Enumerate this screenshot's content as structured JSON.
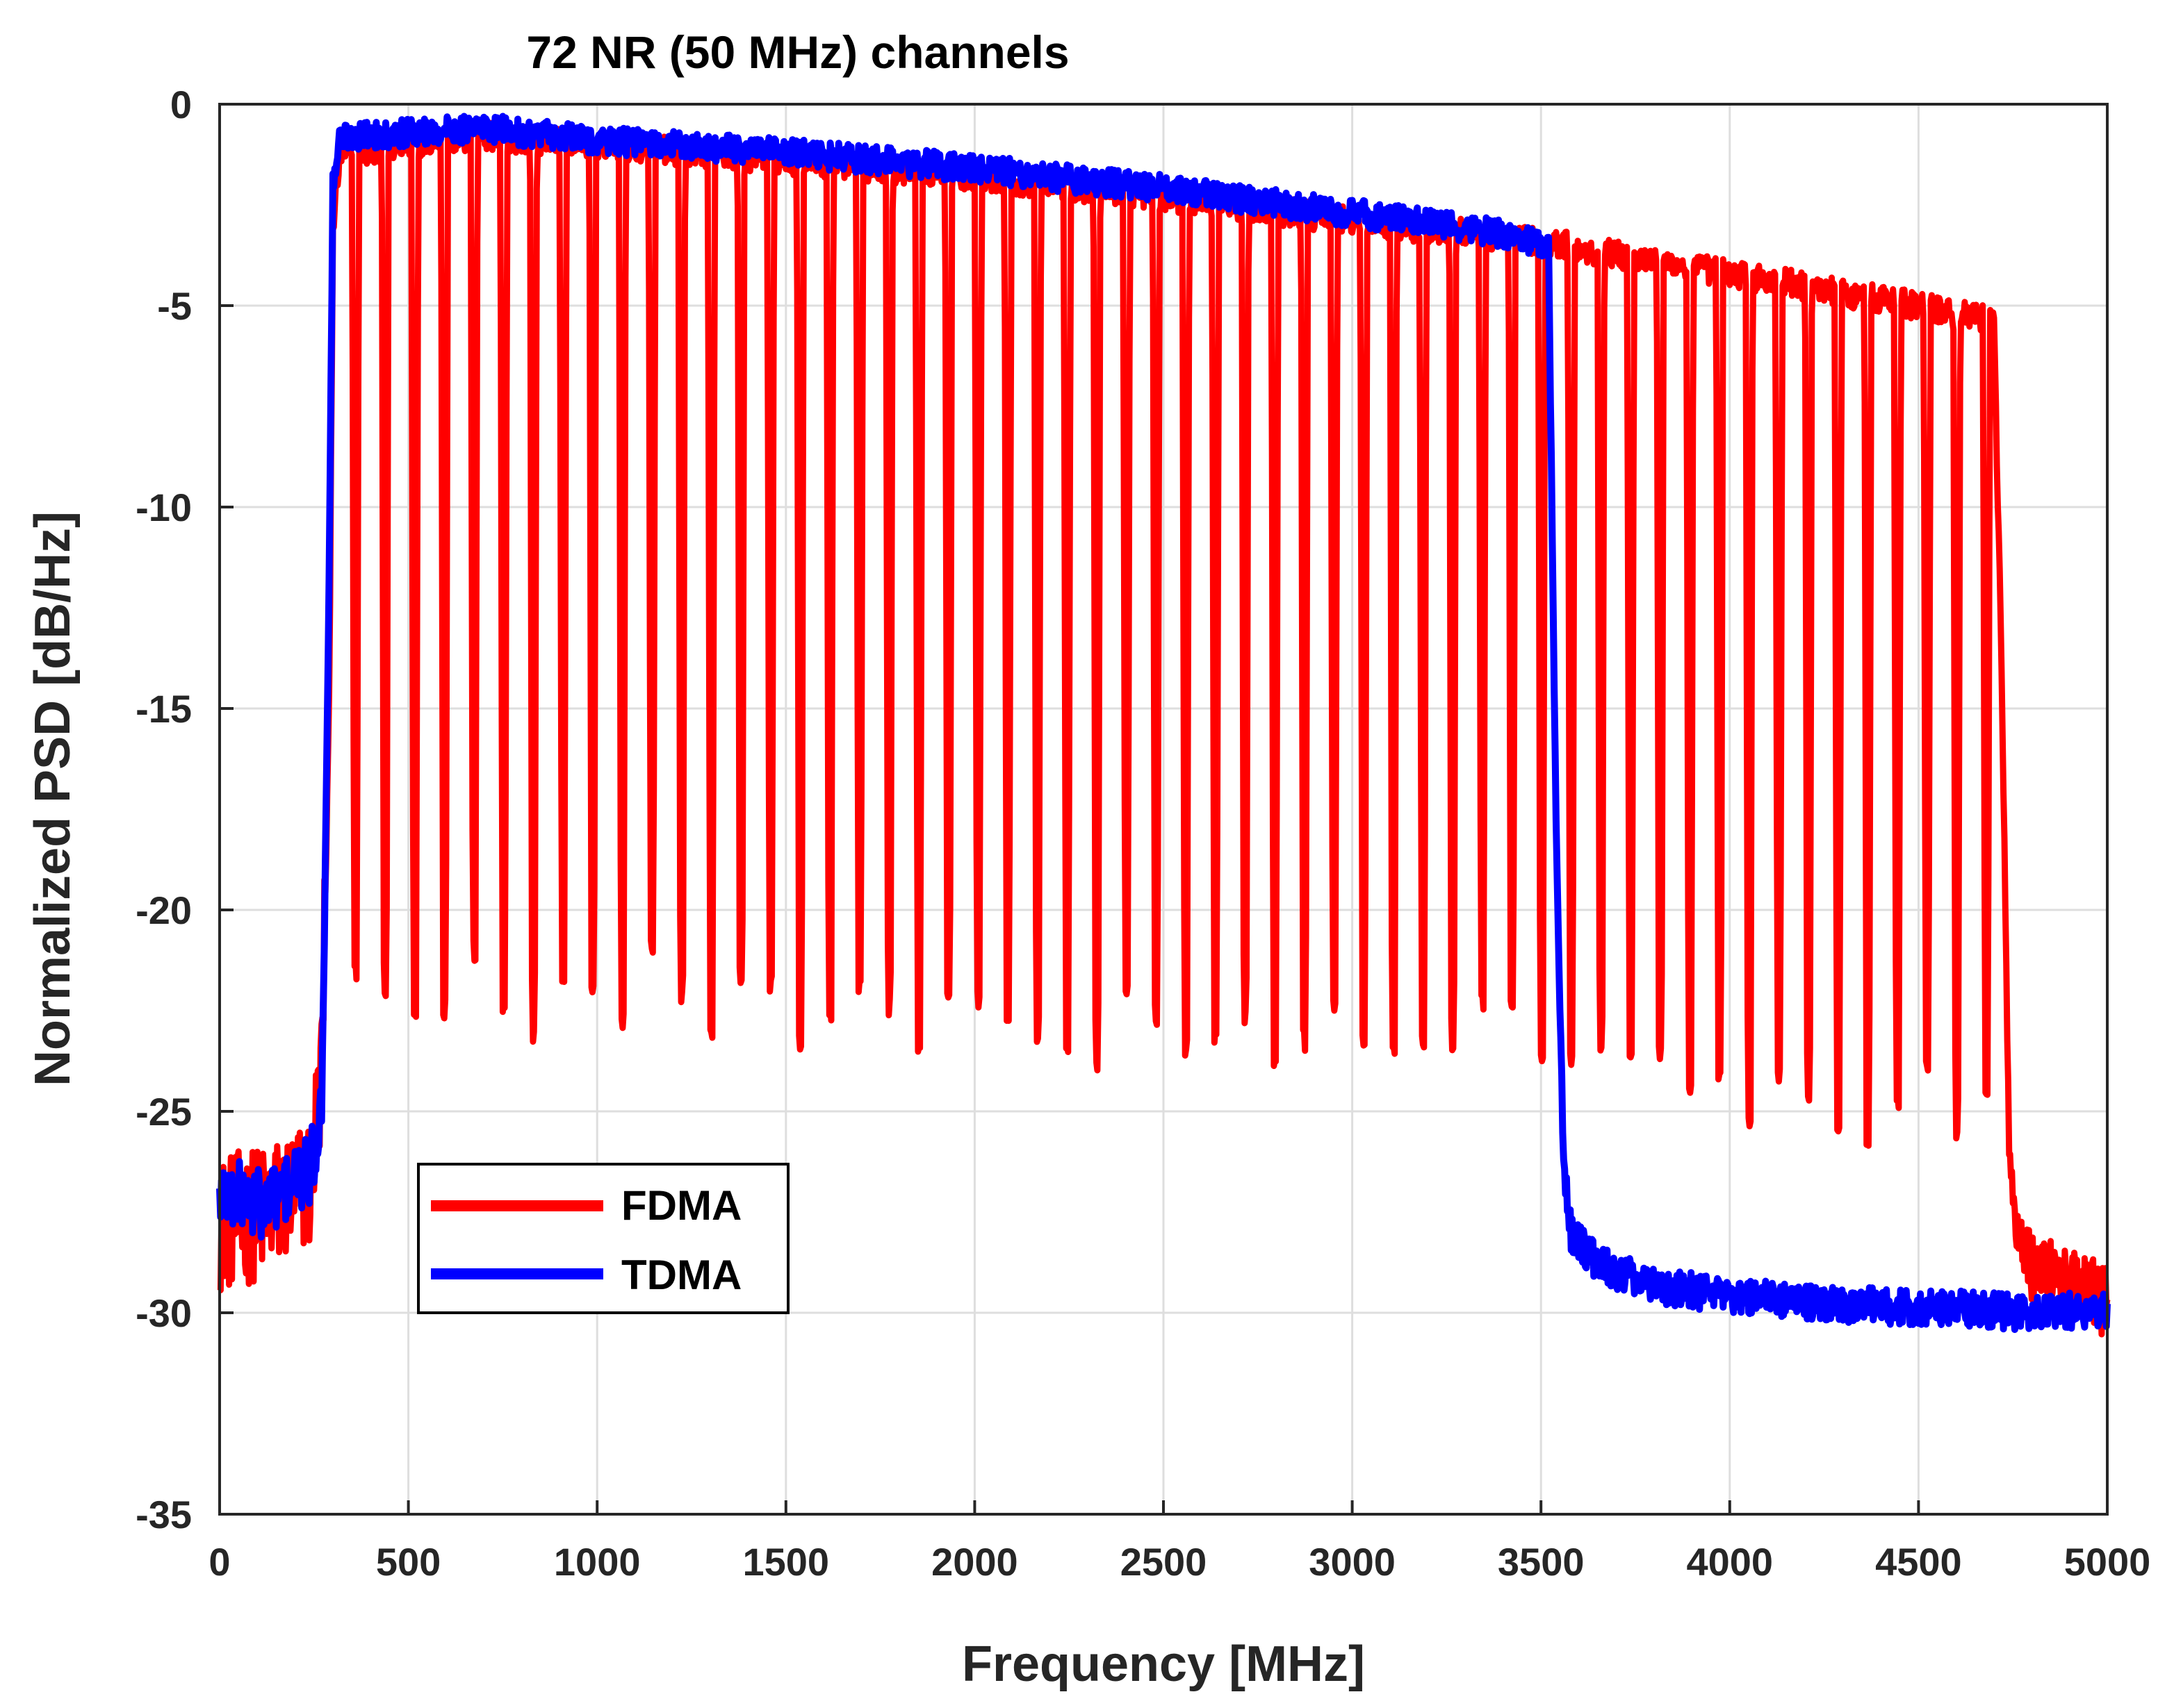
{
  "chart_data": {
    "type": "line",
    "title": "72 NR (50 MHz) channels",
    "xlabel": "Frequency [MHz]",
    "ylabel": "Normalized PSD [dB/Hz]",
    "xlim": [
      0,
      5000
    ],
    "ylim": [
      -35,
      0
    ],
    "x_ticks": [
      0,
      500,
      1000,
      1500,
      2000,
      2500,
      3000,
      3500,
      4000,
      4500,
      5000
    ],
    "y_ticks": [
      0,
      -5,
      -10,
      -15,
      -20,
      -25,
      -30,
      -35
    ],
    "x_tick_labels": [
      "0",
      "500",
      "1000",
      "1500",
      "2000",
      "2500",
      "3000",
      "3500",
      "4000",
      "4500",
      "5000"
    ],
    "y_tick_labels": [
      "0",
      "-5",
      "-10",
      "-15",
      "-20",
      "-25",
      "-30",
      "-35"
    ],
    "grid": true,
    "legend_position": "bottom-left",
    "series": [
      {
        "name": "FDMA",
        "color": "#ff0000",
        "envelope": {
          "x": [
            0,
            120,
            240,
            270,
            290,
            300,
            320,
            700,
            1000,
            1500,
            2000,
            2500,
            3000,
            3500,
            4000,
            4500,
            4700,
            4720,
            4740,
            4760,
            4800,
            4900,
            5000
          ],
          "y": [
            -27.8,
            -27.5,
            -26.8,
            -24,
            -15,
            -3,
            -1.2,
            -0.8,
            -1.0,
            -1.4,
            -1.8,
            -2.3,
            -2.9,
            -3.4,
            -4.2,
            -5.0,
            -5.4,
            -14,
            -26,
            -28,
            -28.8,
            -29.3,
            -29.7
          ]
        },
        "notches": {
          "count": 56,
          "x_start": 360,
          "x_end": 4680,
          "min_db": [
            -21.5,
            -22.0,
            -22.8,
            -22.5,
            -21.0,
            -22.5,
            -23.0,
            -21.5,
            -22.0,
            -22.8,
            -21.0,
            -22.3,
            -23.0,
            -22.0,
            -21.8,
            -23.2,
            -22.6,
            -21.9,
            -22.5,
            -23.5,
            -22.4,
            -22.2,
            -22.5,
            -23.0,
            -23.4,
            -24.0,
            -22.0,
            -22.6,
            -23.4,
            -23.0,
            -22.8,
            -23.6,
            -23.2,
            -22.5,
            -23.3,
            -23.7,
            -23.3,
            -23.6,
            -22.4,
            -22.5,
            -23.6,
            -23.7,
            -23.2,
            -23.4,
            -23.7,
            -24.6,
            -24.0,
            -25.4,
            -24.2,
            -24.6,
            -25.2,
            -25.6,
            -24.8,
            -24.0,
            -25.4,
            -24.8
          ]
        }
      },
      {
        "name": "TDMA",
        "color": "#0000ff",
        "envelope": {
          "x": [
            0,
            120,
            240,
            270,
            290,
            300,
            320,
            700,
            1000,
            1500,
            2000,
            2500,
            3000,
            3400,
            3520,
            3540,
            3560,
            3580,
            3650,
            3800,
            4000,
            4300,
            4600,
            4800,
            5000
          ],
          "y": [
            -27.0,
            -27.3,
            -26.5,
            -25,
            -12,
            -2,
            -0.8,
            -0.6,
            -0.9,
            -1.2,
            -1.6,
            -2.1,
            -2.7,
            -3.2,
            -3.5,
            -18,
            -26.5,
            -28.0,
            -28.8,
            -29.3,
            -29.6,
            -29.8,
            -29.9,
            -30.0,
            -29.9
          ]
        }
      }
    ]
  }
}
